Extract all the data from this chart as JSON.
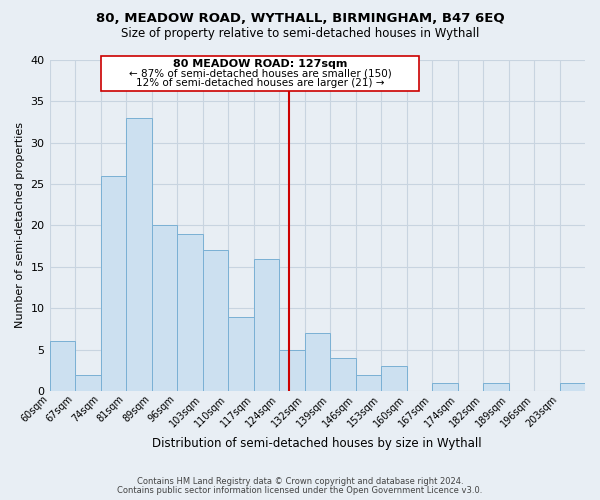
{
  "title": "80, MEADOW ROAD, WYTHALL, BIRMINGHAM, B47 6EQ",
  "subtitle": "Size of property relative to semi-detached houses in Wythall",
  "xlabel": "Distribution of semi-detached houses by size in Wythall",
  "ylabel": "Number of semi-detached properties",
  "bin_labels": [
    "60sqm",
    "67sqm",
    "74sqm",
    "81sqm",
    "89sqm",
    "96sqm",
    "103sqm",
    "110sqm",
    "117sqm",
    "124sqm",
    "132sqm",
    "139sqm",
    "146sqm",
    "153sqm",
    "160sqm",
    "167sqm",
    "174sqm",
    "182sqm",
    "189sqm",
    "196sqm",
    "203sqm"
  ],
  "bar_heights": [
    6,
    2,
    26,
    33,
    20,
    19,
    17,
    9,
    16,
    5,
    7,
    4,
    2,
    3,
    0,
    1,
    0,
    1,
    0,
    0,
    1
  ],
  "bar_color": "#cce0f0",
  "bar_edge_color": "#7ab0d4",
  "property_line_color": "#cc0000",
  "annotation_title": "80 MEADOW ROAD: 127sqm",
  "annotation_line1": "← 87% of semi-detached houses are smaller (150)",
  "annotation_line2": "12% of semi-detached houses are larger (21) →",
  "ylim": [
    0,
    40
  ],
  "yticks": [
    0,
    5,
    10,
    15,
    20,
    25,
    30,
    35,
    40
  ],
  "footer1": "Contains HM Land Registry data © Crown copyright and database right 2024.",
  "footer2": "Contains public sector information licensed under the Open Government Licence v3.0.",
  "background_color": "#e8eef4",
  "grid_color": "#c8d4e0",
  "bin_edges_num": [
    60,
    67,
    74,
    81,
    89,
    96,
    103,
    110,
    117,
    124,
    132,
    139,
    146,
    153,
    160,
    167,
    174,
    182,
    189,
    196,
    203
  ],
  "property_sqm": 127
}
